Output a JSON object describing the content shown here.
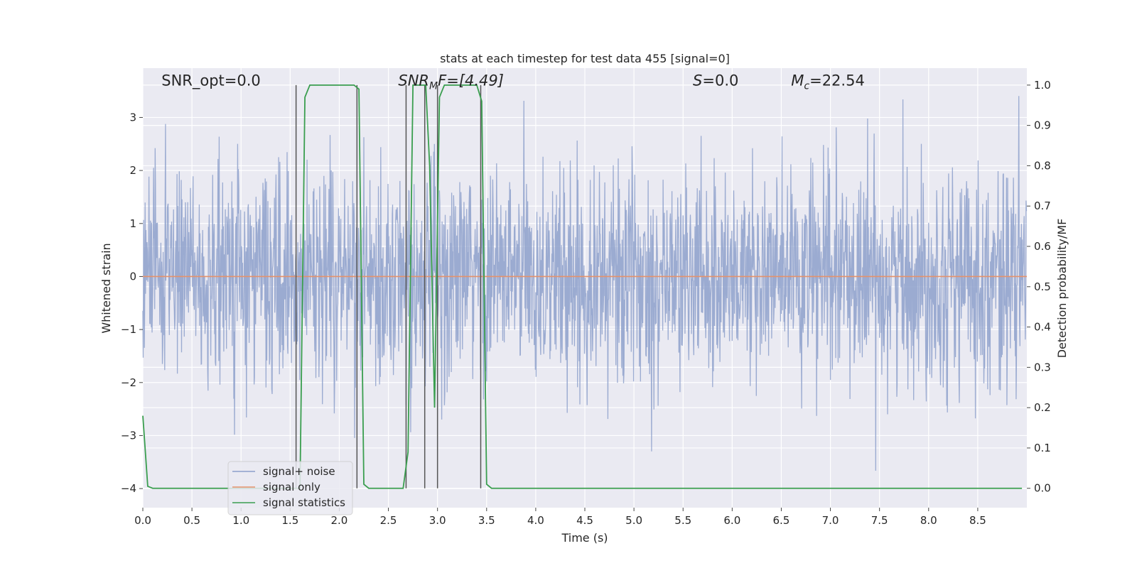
{
  "chart_data": {
    "type": "line",
    "title": "stats at each timestep for test data 455 [signal=0]",
    "xlabel": "Time (s)",
    "ylabel": "Whitened strain",
    "y2label": "Detection probability/MF",
    "xlim": [
      0.0,
      9.0
    ],
    "ylim": [
      -4.36,
      3.93
    ],
    "y2lim": [
      -0.048,
      1.042
    ],
    "xticks": [
      0.0,
      0.5,
      1.0,
      1.5,
      2.0,
      2.5,
      3.0,
      3.5,
      4.0,
      4.5,
      5.0,
      5.5,
      6.0,
      6.5,
      7.0,
      7.5,
      8.0,
      8.5
    ],
    "xtick_labels": [
      "0.0",
      "0.5",
      "1.0",
      "1.5",
      "2.0",
      "2.5",
      "3.0",
      "3.5",
      "4.0",
      "4.5",
      "5.0",
      "5.5",
      "6.0",
      "6.5",
      "7.0",
      "7.5",
      "8.0",
      "8.5"
    ],
    "yticks": [
      -4,
      -3,
      -2,
      -1,
      0,
      1,
      2,
      3
    ],
    "ytick_labels": [
      "−4",
      "−3",
      "−2",
      "−1",
      "0",
      "1",
      "2",
      "3"
    ],
    "y2ticks": [
      0.0,
      0.1,
      0.2,
      0.3,
      0.4,
      0.5,
      0.6,
      0.7,
      0.8,
      0.9,
      1.0
    ],
    "y2tick_labels": [
      "0.0",
      "0.1",
      "0.2",
      "0.3",
      "0.4",
      "0.5",
      "0.6",
      "0.7",
      "0.8",
      "0.9",
      "1.0"
    ],
    "grid": true,
    "legend_position": "lower-left",
    "series": [
      {
        "name": "signal+ noise",
        "color": "#8da0cb",
        "sample_rate_hz": 256,
        "amplitude_std": 1.0
      },
      {
        "name": "signal only",
        "color": "#e5926b",
        "x": [
          0.0,
          9.0
        ],
        "y": [
          0.0,
          0.0
        ]
      },
      {
        "name": "signal statistics",
        "color": "#3a9e4f",
        "x": [
          0.0,
          0.05,
          0.1,
          0.15,
          1.5,
          1.55,
          1.6,
          1.65,
          1.7,
          2.15,
          2.2,
          2.25,
          2.3,
          2.6,
          2.65,
          2.7,
          2.75,
          2.8,
          2.88,
          2.92,
          2.97,
          3.02,
          3.07,
          3.12,
          3.17,
          3.4,
          3.45,
          3.5,
          3.55,
          3.6,
          8.95
        ],
        "y": [
          0.18,
          0.005,
          0.0,
          0.0,
          0.0,
          0.0,
          0.0,
          0.97,
          1.0,
          1.0,
          0.99,
          0.01,
          0.0,
          0.0,
          0.0,
          0.09,
          1.0,
          1.0,
          1.0,
          0.8,
          0.2,
          0.97,
          1.0,
          1.0,
          1.0,
          1.0,
          0.96,
          0.01,
          0.0,
          0.0,
          0.0
        ]
      }
    ],
    "vlines": [
      1.56,
      2.18,
      2.68,
      2.87,
      3.0,
      3.44
    ],
    "annotations": [
      {
        "text": "SNR_opt=0.0",
        "x": 0.19,
        "y": 3.6
      },
      {
        "text": "SNR_MF=[4.49]",
        "x": 2.6,
        "y": 3.6
      },
      {
        "text": "S=0.0",
        "x": 5.6,
        "y": 3.6
      },
      {
        "text": "M_c=22.54",
        "x": 6.6,
        "y": 3.6
      }
    ]
  }
}
